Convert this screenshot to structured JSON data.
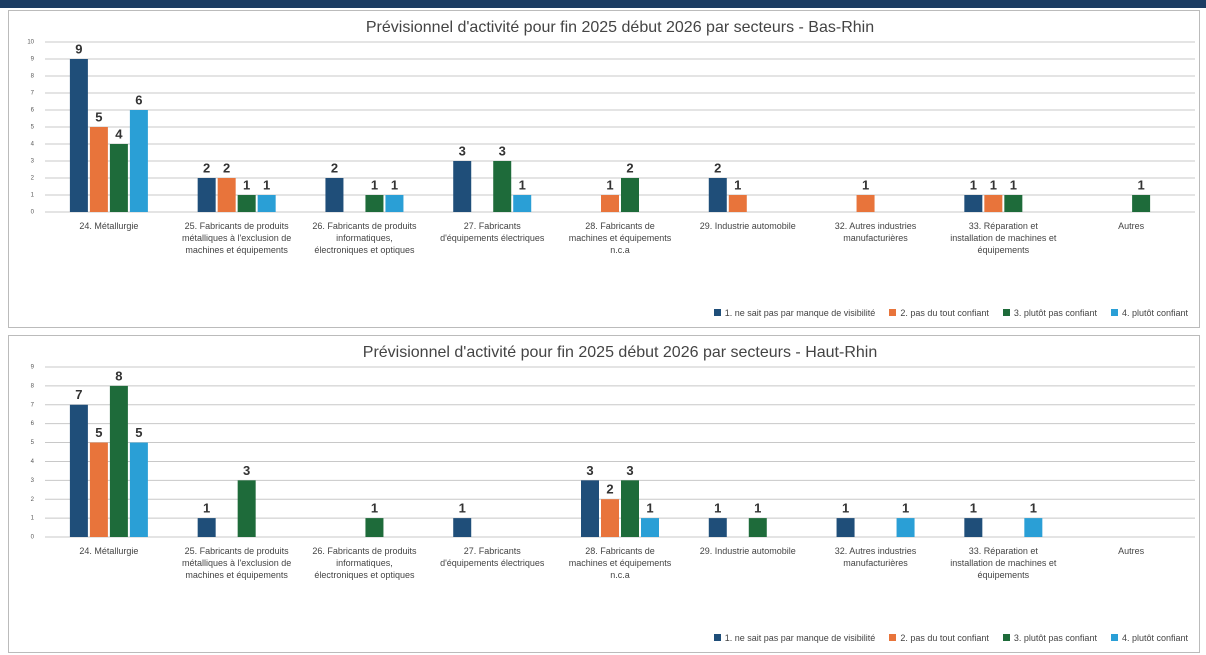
{
  "chart_data": [
    {
      "type": "bar",
      "title": "Prévisionnel d'activité pour fin 2025 début 2026 par secteurs - Bas-Rhin",
      "categories": [
        "24. Métallurgie",
        "25. Fabricants de produits métalliques à l'exclusion de machines et équipements",
        "26. Fabricants de produits informatiques, électroniques et optiques",
        "27. Fabricants d'équipements électriques",
        "28. Fabricants de machines et équipements n.c.a",
        "29. Industrie automobile",
        "32. Autres industries manufacturières",
        "33. Réparation et installation de machines et équipements",
        "Autres"
      ],
      "series": [
        {
          "name": "1. ne sait pas par manque de visibilité",
          "color": "#1f4e79",
          "values": [
            9,
            2,
            2,
            3,
            null,
            2,
            null,
            1,
            null
          ]
        },
        {
          "name": "2. pas du tout confiant",
          "color": "#e8743b",
          "values": [
            5,
            2,
            null,
            null,
            1,
            1,
            1,
            1,
            null
          ]
        },
        {
          "name": "3. plutôt pas confiant",
          "color": "#1e6b3a",
          "values": [
            4,
            1,
            1,
            3,
            2,
            null,
            null,
            1,
            1
          ]
        },
        {
          "name": "4. plutôt confiant",
          "color": "#2a9fd6",
          "values": [
            6,
            1,
            1,
            1,
            null,
            null,
            null,
            null,
            null
          ]
        }
      ],
      "ylim": [
        0,
        10
      ],
      "yticks": [
        0,
        1,
        2,
        3,
        4,
        5,
        6,
        7,
        8,
        9,
        10
      ],
      "grid": true,
      "legend": "bottom-right"
    },
    {
      "type": "bar",
      "title": "Prévisionnel d'activité pour fin 2025 début 2026 par secteurs - Haut-Rhin",
      "categories": [
        "24. Métallurgie",
        "25. Fabricants de produits métalliques à l'exclusion de machines et équipements",
        "26. Fabricants de produits informatiques, électroniques et optiques",
        "27. Fabricants d'équipements électriques",
        "28. Fabricants de machines et équipements n.c.a",
        "29. Industrie automobile",
        "32. Autres industries manufacturières",
        "33. Réparation et installation de machines et équipements",
        "Autres"
      ],
      "series": [
        {
          "name": "1. ne sait pas par manque de visibilité",
          "color": "#1f4e79",
          "values": [
            7,
            1,
            null,
            1,
            3,
            1,
            1,
            1,
            null
          ]
        },
        {
          "name": "2. pas du tout confiant",
          "color": "#e8743b",
          "values": [
            5,
            null,
            null,
            null,
            2,
            null,
            null,
            null,
            null
          ]
        },
        {
          "name": "3. plutôt pas confiant",
          "color": "#1e6b3a",
          "values": [
            8,
            3,
            1,
            null,
            3,
            1,
            null,
            null,
            null
          ]
        },
        {
          "name": "4. plutôt confiant",
          "color": "#2a9fd6",
          "values": [
            5,
            null,
            null,
            null,
            1,
            null,
            1,
            1,
            null
          ]
        }
      ],
      "ylim": [
        0,
        9
      ],
      "yticks": [
        0,
        1,
        2,
        3,
        4,
        5,
        6,
        7,
        8,
        9
      ],
      "grid": true,
      "legend": "bottom-right"
    }
  ]
}
